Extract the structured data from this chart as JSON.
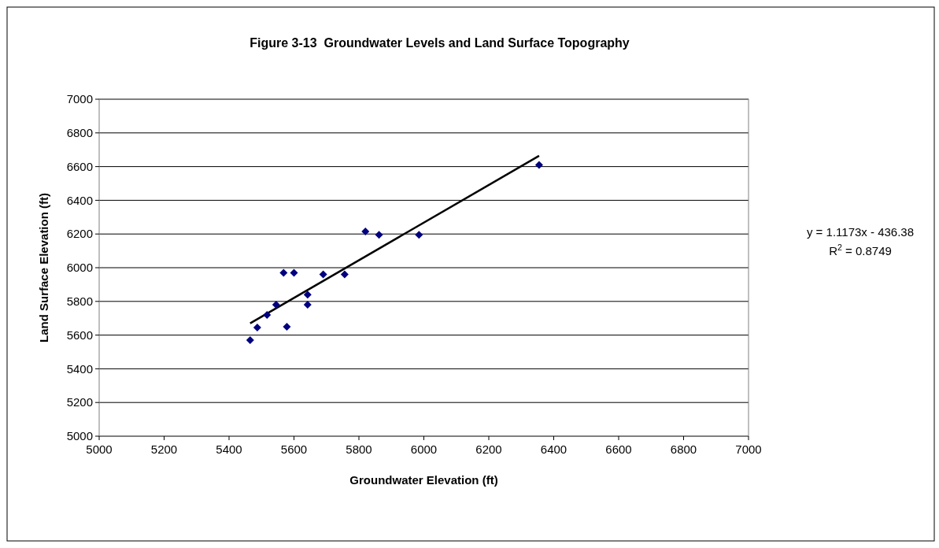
{
  "chart_data": {
    "type": "scatter",
    "title": "Figure 3-13  Groundwater Levels and Land Surface Topography",
    "xlabel": "Groundwater Elevation (ft)",
    "ylabel": "Land Surface Elevation (ft)",
    "xlim": [
      5000,
      7000
    ],
    "xticks": [
      5000,
      5200,
      5400,
      5600,
      5800,
      6000,
      6200,
      6400,
      6600,
      6800,
      7000
    ],
    "ylim": [
      5000,
      7000
    ],
    "yticks": [
      5000,
      5200,
      5400,
      5600,
      5800,
      6000,
      6200,
      6400,
      6600,
      6800,
      7000
    ],
    "grid": "y",
    "series": [
      {
        "type": "scatter",
        "marker": "diamond",
        "color": "#000080",
        "x": [
          5465,
          5487,
          5517,
          5545,
          5568,
          5600,
          5578,
          5642,
          5642,
          5690,
          5756,
          5820,
          5862,
          5985,
          6355
        ],
        "values": [
          5570,
          5645,
          5720,
          5780,
          5970,
          5970,
          5650,
          5840,
          5780,
          5960,
          5960,
          6215,
          6195,
          6195,
          6610
        ]
      },
      {
        "type": "line",
        "color": "#000000",
        "x": [
          5465,
          6355
        ],
        "values": [
          5670,
          6664
        ]
      }
    ],
    "annotations": [
      "y = 1.1173x - 436.38",
      "R$^{2}$ = 0.8749"
    ]
  }
}
